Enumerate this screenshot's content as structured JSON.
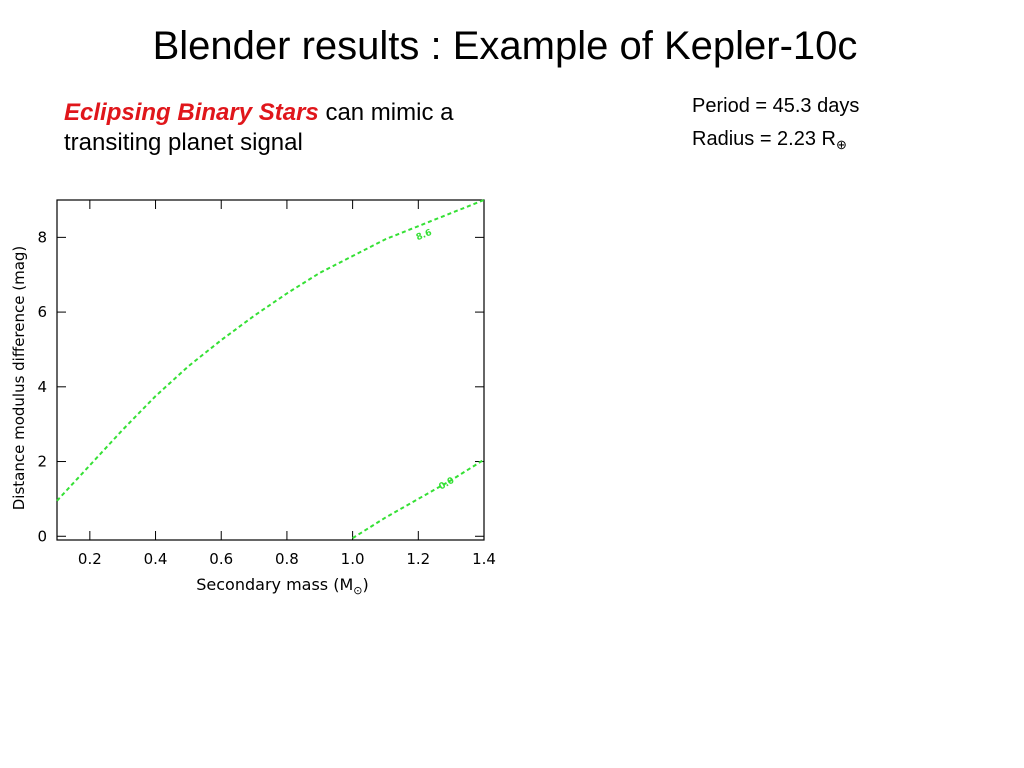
{
  "slide": {
    "title": "Blender results : Example of Kepler-10c",
    "subtitle_emphasis": "Eclipsing Binary Stars",
    "subtitle_rest": "can mimic a transiting planet signal",
    "period": "Period = 45.3 days",
    "radius_prefix": "Radius = 2.23 R",
    "radius_subscript": "⊕"
  },
  "chart_data": {
    "type": "line",
    "xlabel": "Secondary mass (M",
    "xlabel_subscript": "⊙",
    "xlabel_suffix": ")",
    "ylabel": "Distance modulus difference (mag)",
    "xlim": [
      0.1,
      1.4
    ],
    "ylim": [
      -0.1,
      9.0
    ],
    "xticks": [
      0.2,
      0.4,
      0.6,
      0.8,
      1.0,
      1.2,
      1.4
    ],
    "xtick_labels": [
      "0.2",
      "0.4",
      "0.6",
      "0.8",
      "1.0",
      "1.2",
      "1.4"
    ],
    "yticks": [
      0,
      2,
      4,
      6,
      8
    ],
    "ytick_labels": [
      "0",
      "2",
      "4",
      "6",
      "8"
    ],
    "line_color": "#35e035",
    "grid": false,
    "series": [
      {
        "label": "8.6",
        "label_at": [
          1.22,
          8.0
        ],
        "x": [
          0.1,
          0.2,
          0.3,
          0.4,
          0.5,
          0.6,
          0.7,
          0.8,
          0.9,
          1.0,
          1.1,
          1.2,
          1.3,
          1.4
        ],
        "y": [
          0.95,
          1.9,
          2.85,
          3.75,
          4.55,
          5.25,
          5.9,
          6.5,
          7.05,
          7.5,
          7.95,
          8.3,
          8.65,
          9.0
        ]
      },
      {
        "label": "0.0",
        "label_at": [
          1.29,
          1.35
        ],
        "x": [
          1.0,
          1.1,
          1.2,
          1.3,
          1.4
        ],
        "y": [
          -0.05,
          0.5,
          1.0,
          1.5,
          2.05
        ]
      }
    ]
  }
}
